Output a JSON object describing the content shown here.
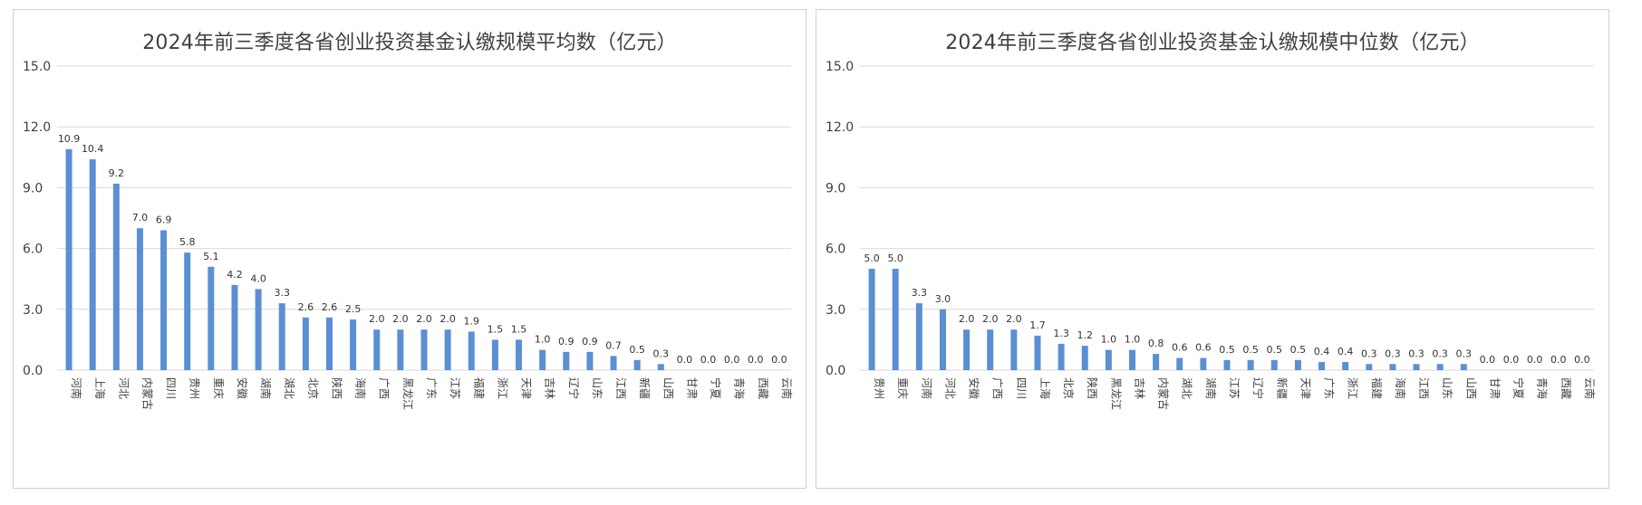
{
  "chart_data": [
    {
      "type": "bar",
      "title": "2024年前三季度各省创业投资基金认缴规模平均数（亿元）",
      "categories": [
        "河南",
        "上海",
        "河北",
        "内蒙古",
        "四川",
        "贵州",
        "重庆",
        "安徽",
        "湖南",
        "湖北",
        "北京",
        "陕西",
        "海南",
        "广西",
        "黑龙江",
        "广东",
        "江苏",
        "福建",
        "浙江",
        "天津",
        "吉林",
        "辽宁",
        "山东",
        "江西",
        "新疆",
        "山西",
        "甘肃",
        "宁夏",
        "青海",
        "西藏",
        "云南"
      ],
      "values": [
        10.9,
        10.4,
        9.2,
        7.0,
        6.9,
        5.8,
        5.1,
        4.2,
        4.0,
        3.3,
        2.6,
        2.6,
        2.5,
        2.0,
        2.0,
        2.0,
        2.0,
        1.9,
        1.5,
        1.5,
        1.0,
        0.9,
        0.9,
        0.7,
        0.5,
        0.3,
        0.0,
        0.0,
        0.0,
        0.0,
        0.0
      ],
      "value_labels": [
        "10.9",
        "10.4",
        "9.2",
        "7.0",
        "6.9",
        "5.8",
        "5.1",
        "4.2",
        "4.0",
        "3.3",
        "2.6",
        "2.6",
        "2.5",
        "2.0",
        "2.0",
        "2.0",
        "2.0",
        "1.9",
        "1.5",
        "1.5",
        "1.0",
        "0.9",
        "0.9",
        "0.7",
        "0.5",
        "0.3",
        "0.0",
        "0.0",
        "0.0",
        "0.0",
        "0.0"
      ],
      "ylim": [
        0,
        15
      ],
      "yticks": [
        "0.0",
        "3.0",
        "6.0",
        "9.0",
        "12.0",
        "15.0"
      ],
      "grid": true,
      "bar_color": "#5b8fd3"
    },
    {
      "type": "bar",
      "title": "2024年前三季度各省创业投资基金认缴规模中位数（亿元）",
      "categories": [
        "贵州",
        "重庆",
        "河南",
        "河北",
        "安徽",
        "广西",
        "四川",
        "上海",
        "北京",
        "陕西",
        "黑龙江",
        "吉林",
        "内蒙古",
        "湖北",
        "湖南",
        "江苏",
        "辽宁",
        "新疆",
        "天津",
        "广东",
        "浙江",
        "福建",
        "海南",
        "江西",
        "山东",
        "山西",
        "甘肃",
        "宁夏",
        "青海",
        "西藏",
        "云南"
      ],
      "values": [
        5.0,
        5.0,
        3.3,
        3.0,
        2.0,
        2.0,
        2.0,
        1.7,
        1.3,
        1.2,
        1.0,
        1.0,
        0.8,
        0.6,
        0.6,
        0.5,
        0.5,
        0.5,
        0.5,
        0.4,
        0.4,
        0.3,
        0.3,
        0.3,
        0.3,
        0.3,
        0.0,
        0.0,
        0.0,
        0.0,
        0.0
      ],
      "value_labels": [
        "5.0",
        "5.0",
        "3.3",
        "3.0",
        "2.0",
        "2.0",
        "2.0",
        "1.7",
        "1.3",
        "1.2",
        "1.0",
        "1.0",
        "0.8",
        "0.6",
        "0.6",
        "0.5",
        "0.5",
        "0.5",
        "0.5",
        "0.4",
        "0.4",
        "0.3",
        "0.3",
        "0.3",
        "0.3",
        "0.3",
        "0.0",
        "0.0",
        "0.0",
        "0.0",
        "0.0"
      ],
      "ylim": [
        0,
        15
      ],
      "yticks": [
        "0.0",
        "3.0",
        "6.0",
        "9.0",
        "12.0",
        "15.0"
      ],
      "grid": true,
      "bar_color": "#5b8fd3"
    }
  ]
}
